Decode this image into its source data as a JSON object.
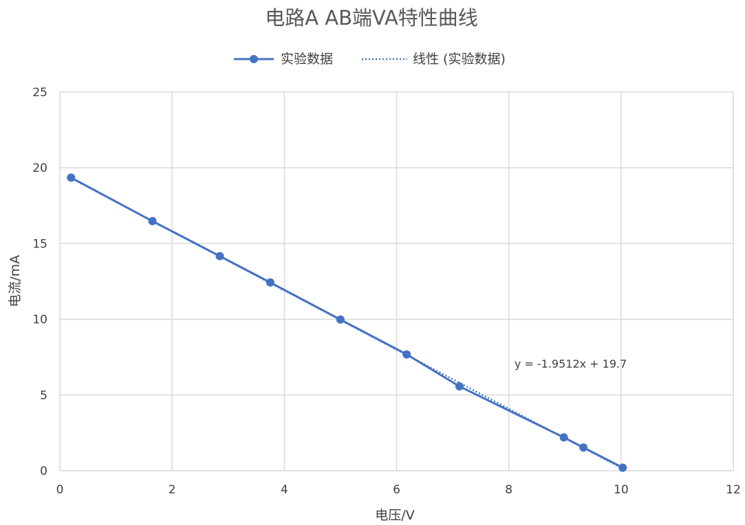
{
  "chart_data": {
    "type": "scatter",
    "title": "电路A AB端VA特性曲线",
    "xlabel": "电压/V",
    "ylabel": "电流/mA",
    "xlim": [
      0,
      12
    ],
    "ylim": [
      0,
      25
    ],
    "xticks": [
      0,
      2,
      4,
      6,
      8,
      10,
      12
    ],
    "yticks": [
      0,
      5,
      10,
      15,
      20,
      25
    ],
    "grid": true,
    "legend_position": "top",
    "series": [
      {
        "name": "实验数据",
        "color": "#4472C4",
        "style": "line-with-markers",
        "x": [
          0.2,
          1.65,
          2.85,
          3.75,
          5.0,
          6.18,
          7.12,
          8.98,
          9.33,
          10.03
        ],
        "y": [
          19.35,
          16.48,
          14.17,
          12.43,
          9.98,
          7.68,
          5.57,
          2.2,
          1.53,
          0.2
        ]
      },
      {
        "name": "线性 (实验数据)",
        "color": "#4472C4",
        "style": "dotted-trendline",
        "slope": -1.9512,
        "intercept": 19.7
      }
    ],
    "annotations": [
      {
        "text": "y = -1.9512x + 19.7",
        "x": 8.1,
        "y": 6.8
      }
    ]
  }
}
